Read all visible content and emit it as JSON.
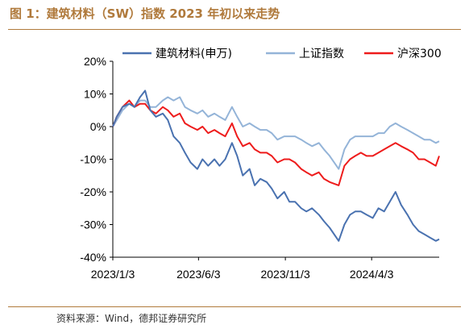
{
  "figure": {
    "title": "图 1：建筑材料（SW）指数 2023 年初以来走势",
    "source": "资料来源：Wind，德邦证券研究所"
  },
  "colors": {
    "accent": "#b07a3c",
    "series_building": "#4a72b0",
    "series_shanghai": "#94b4d8",
    "series_hs300": "#ee1c1c"
  },
  "chart_data": {
    "type": "line",
    "title": "",
    "xlabel": "",
    "ylabel": "",
    "ylim": [
      -0.4,
      0.2
    ],
    "yticks": [
      {
        "value": 0.2,
        "label": "20%"
      },
      {
        "value": 0.1,
        "label": "10%"
      },
      {
        "value": 0.0,
        "label": "0%"
      },
      {
        "value": -0.1,
        "label": "-10%"
      },
      {
        "value": -0.2,
        "label": "-20%"
      },
      {
        "value": -0.3,
        "label": "-30%"
      },
      {
        "value": -0.4,
        "label": "-40%"
      }
    ],
    "xrange": [
      "2023-01-03",
      "2024-07-31"
    ],
    "xticks": [
      {
        "date": "2023-01-03",
        "label": "2023/1/3"
      },
      {
        "date": "2023-06-03",
        "label": "2023/6/3"
      },
      {
        "date": "2023-11-03",
        "label": "2023/11/3"
      },
      {
        "date": "2024-04-03",
        "label": "2024/4/3"
      }
    ],
    "grid": false,
    "legend": "top",
    "series": [
      {
        "name": "建筑材料(申万)",
        "color": "#4a72b0",
        "points": [
          [
            "2023-01-03",
            0.0
          ],
          [
            "2023-01-10",
            0.03
          ],
          [
            "2023-01-20",
            0.06
          ],
          [
            "2023-02-01",
            0.07
          ],
          [
            "2023-02-10",
            0.06
          ],
          [
            "2023-02-20",
            0.09
          ],
          [
            "2023-03-01",
            0.11
          ],
          [
            "2023-03-10",
            0.05
          ],
          [
            "2023-03-20",
            0.03
          ],
          [
            "2023-04-01",
            0.04
          ],
          [
            "2023-04-10",
            0.02
          ],
          [
            "2023-04-20",
            -0.03
          ],
          [
            "2023-05-01",
            -0.05
          ],
          [
            "2023-05-10",
            -0.08
          ],
          [
            "2023-05-20",
            -0.11
          ],
          [
            "2023-06-01",
            -0.13
          ],
          [
            "2023-06-10",
            -0.1
          ],
          [
            "2023-06-20",
            -0.12
          ],
          [
            "2023-07-01",
            -0.1
          ],
          [
            "2023-07-10",
            -0.12
          ],
          [
            "2023-07-20",
            -0.1
          ],
          [
            "2023-08-01",
            -0.05
          ],
          [
            "2023-08-10",
            -0.09
          ],
          [
            "2023-08-20",
            -0.15
          ],
          [
            "2023-09-01",
            -0.13
          ],
          [
            "2023-09-10",
            -0.18
          ],
          [
            "2023-09-20",
            -0.16
          ],
          [
            "2023-10-01",
            -0.17
          ],
          [
            "2023-10-10",
            -0.19
          ],
          [
            "2023-10-20",
            -0.22
          ],
          [
            "2023-11-01",
            -0.2
          ],
          [
            "2023-11-10",
            -0.23
          ],
          [
            "2023-11-20",
            -0.23
          ],
          [
            "2023-12-01",
            -0.25
          ],
          [
            "2023-12-10",
            -0.26
          ],
          [
            "2023-12-20",
            -0.25
          ],
          [
            "2024-01-01",
            -0.27
          ],
          [
            "2024-01-10",
            -0.29
          ],
          [
            "2024-01-20",
            -0.31
          ],
          [
            "2024-02-05",
            -0.35
          ],
          [
            "2024-02-15",
            -0.3
          ],
          [
            "2024-02-25",
            -0.27
          ],
          [
            "2024-03-05",
            -0.26
          ],
          [
            "2024-03-15",
            -0.26
          ],
          [
            "2024-03-25",
            -0.27
          ],
          [
            "2024-04-05",
            -0.28
          ],
          [
            "2024-04-15",
            -0.25
          ],
          [
            "2024-04-25",
            -0.26
          ],
          [
            "2024-05-05",
            -0.23
          ],
          [
            "2024-05-15",
            -0.2
          ],
          [
            "2024-05-25",
            -0.24
          ],
          [
            "2024-06-05",
            -0.27
          ],
          [
            "2024-06-15",
            -0.3
          ],
          [
            "2024-06-25",
            -0.32
          ],
          [
            "2024-07-05",
            -0.33
          ],
          [
            "2024-07-15",
            -0.34
          ],
          [
            "2024-07-25",
            -0.35
          ],
          [
            "2024-07-31",
            -0.345
          ]
        ]
      },
      {
        "name": "上证指数",
        "color": "#94b4d8",
        "points": [
          [
            "2023-01-03",
            0.0
          ],
          [
            "2023-01-10",
            0.02
          ],
          [
            "2023-01-20",
            0.05
          ],
          [
            "2023-02-01",
            0.07
          ],
          [
            "2023-02-10",
            0.06
          ],
          [
            "2023-02-20",
            0.08
          ],
          [
            "2023-03-01",
            0.08
          ],
          [
            "2023-03-10",
            0.06
          ],
          [
            "2023-03-20",
            0.06
          ],
          [
            "2023-04-01",
            0.08
          ],
          [
            "2023-04-10",
            0.09
          ],
          [
            "2023-04-20",
            0.08
          ],
          [
            "2023-05-01",
            0.09
          ],
          [
            "2023-05-10",
            0.06
          ],
          [
            "2023-05-20",
            0.05
          ],
          [
            "2023-06-01",
            0.04
          ],
          [
            "2023-06-10",
            0.05
          ],
          [
            "2023-06-20",
            0.03
          ],
          [
            "2023-07-01",
            0.04
          ],
          [
            "2023-07-10",
            0.03
          ],
          [
            "2023-07-20",
            0.02
          ],
          [
            "2023-08-01",
            0.06
          ],
          [
            "2023-08-10",
            0.03
          ],
          [
            "2023-08-20",
            0.0
          ],
          [
            "2023-09-01",
            0.01
          ],
          [
            "2023-09-10",
            0.0
          ],
          [
            "2023-09-20",
            -0.01
          ],
          [
            "2023-10-01",
            -0.01
          ],
          [
            "2023-10-10",
            -0.02
          ],
          [
            "2023-10-20",
            -0.04
          ],
          [
            "2023-11-01",
            -0.03
          ],
          [
            "2023-11-10",
            -0.03
          ],
          [
            "2023-11-20",
            -0.03
          ],
          [
            "2023-12-01",
            -0.04
          ],
          [
            "2023-12-10",
            -0.05
          ],
          [
            "2023-12-20",
            -0.06
          ],
          [
            "2024-01-01",
            -0.05
          ],
          [
            "2024-01-10",
            -0.07
          ],
          [
            "2024-01-20",
            -0.09
          ],
          [
            "2024-02-05",
            -0.13
          ],
          [
            "2024-02-15",
            -0.07
          ],
          [
            "2024-02-25",
            -0.04
          ],
          [
            "2024-03-05",
            -0.03
          ],
          [
            "2024-03-15",
            -0.03
          ],
          [
            "2024-03-25",
            -0.03
          ],
          [
            "2024-04-05",
            -0.03
          ],
          [
            "2024-04-15",
            -0.02
          ],
          [
            "2024-04-25",
            -0.02
          ],
          [
            "2024-05-05",
            0.0
          ],
          [
            "2024-05-15",
            0.01
          ],
          [
            "2024-05-25",
            0.0
          ],
          [
            "2024-06-05",
            -0.01
          ],
          [
            "2024-06-15",
            -0.02
          ],
          [
            "2024-06-25",
            -0.03
          ],
          [
            "2024-07-05",
            -0.04
          ],
          [
            "2024-07-15",
            -0.04
          ],
          [
            "2024-07-25",
            -0.05
          ],
          [
            "2024-07-31",
            -0.045
          ]
        ]
      },
      {
        "name": "沪深300",
        "color": "#ee1c1c",
        "points": [
          [
            "2023-01-03",
            0.0
          ],
          [
            "2023-01-10",
            0.03
          ],
          [
            "2023-01-20",
            0.06
          ],
          [
            "2023-02-01",
            0.08
          ],
          [
            "2023-02-10",
            0.06
          ],
          [
            "2023-02-20",
            0.07
          ],
          [
            "2023-03-01",
            0.07
          ],
          [
            "2023-03-10",
            0.05
          ],
          [
            "2023-03-20",
            0.04
          ],
          [
            "2023-04-01",
            0.06
          ],
          [
            "2023-04-10",
            0.05
          ],
          [
            "2023-04-20",
            0.03
          ],
          [
            "2023-05-01",
            0.04
          ],
          [
            "2023-05-10",
            0.01
          ],
          [
            "2023-05-20",
            0.0
          ],
          [
            "2023-06-01",
            -0.01
          ],
          [
            "2023-06-10",
            0.0
          ],
          [
            "2023-06-20",
            -0.02
          ],
          [
            "2023-07-01",
            -0.01
          ],
          [
            "2023-07-10",
            -0.02
          ],
          [
            "2023-07-20",
            -0.03
          ],
          [
            "2023-08-01",
            0.01
          ],
          [
            "2023-08-10",
            -0.03
          ],
          [
            "2023-08-20",
            -0.06
          ],
          [
            "2023-09-01",
            -0.05
          ],
          [
            "2023-09-10",
            -0.07
          ],
          [
            "2023-09-20",
            -0.08
          ],
          [
            "2023-10-01",
            -0.08
          ],
          [
            "2023-10-10",
            -0.09
          ],
          [
            "2023-10-20",
            -0.11
          ],
          [
            "2023-11-01",
            -0.1
          ],
          [
            "2023-11-10",
            -0.1
          ],
          [
            "2023-11-20",
            -0.11
          ],
          [
            "2023-12-01",
            -0.13
          ],
          [
            "2023-12-10",
            -0.14
          ],
          [
            "2023-12-20",
            -0.15
          ],
          [
            "2024-01-01",
            -0.14
          ],
          [
            "2024-01-10",
            -0.16
          ],
          [
            "2024-01-20",
            -0.17
          ],
          [
            "2024-02-05",
            -0.18
          ],
          [
            "2024-02-15",
            -0.12
          ],
          [
            "2024-02-25",
            -0.1
          ],
          [
            "2024-03-05",
            -0.09
          ],
          [
            "2024-03-15",
            -0.08
          ],
          [
            "2024-03-25",
            -0.09
          ],
          [
            "2024-04-05",
            -0.09
          ],
          [
            "2024-04-15",
            -0.08
          ],
          [
            "2024-04-25",
            -0.07
          ],
          [
            "2024-05-05",
            -0.06
          ],
          [
            "2024-05-15",
            -0.05
          ],
          [
            "2024-05-25",
            -0.06
          ],
          [
            "2024-06-05",
            -0.07
          ],
          [
            "2024-06-15",
            -0.08
          ],
          [
            "2024-06-25",
            -0.1
          ],
          [
            "2024-07-05",
            -0.1
          ],
          [
            "2024-07-15",
            -0.11
          ],
          [
            "2024-07-25",
            -0.12
          ],
          [
            "2024-07-31",
            -0.09
          ]
        ]
      }
    ]
  }
}
